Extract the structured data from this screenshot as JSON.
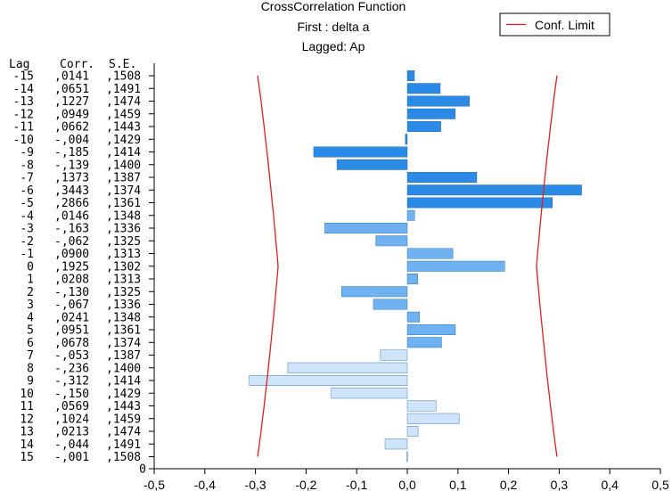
{
  "chart_data": {
    "type": "bar",
    "orientation": "horizontal",
    "title": "CrossCorrelation Function",
    "subtitle_1": "First : delta a",
    "subtitle_2": "Lagged: Ap",
    "legend": {
      "label": "Conf. Limit",
      "color": "#e02020",
      "placement": "top-right"
    },
    "table_headers": {
      "lag": "Lag",
      "corr": "Corr.",
      "se": "S.E."
    },
    "xlim": [
      -0.5,
      0.5
    ],
    "x_ticks": [
      "-0,5",
      "-0,4",
      "-0,3",
      "-0,2",
      "-0,1",
      "0,0",
      "0,1",
      "0,2",
      "0,3",
      "0,4",
      "0,5"
    ],
    "x_tick_values": [
      -0.5,
      -0.4,
      -0.3,
      -0.2,
      -0.1,
      0.0,
      0.1,
      0.2,
      0.3,
      0.4,
      0.5
    ],
    "bottom_label": "0",
    "bar_colors": {
      "dark": "#2b8ae6",
      "mid": "#6fb2f2",
      "light": "#cde4fa",
      "edge": "#1c5fa8"
    },
    "rows": [
      {
        "lag": "-15",
        "corr": ",0141",
        "se": ",1508",
        "value": 0.0141,
        "conf": 0.2956
      },
      {
        "lag": "-14",
        "corr": ",0651",
        "se": ",1491",
        "value": 0.0651,
        "conf": 0.2922
      },
      {
        "lag": "-13",
        "corr": ",1227",
        "se": ",1474",
        "value": 0.1227,
        "conf": 0.2889
      },
      {
        "lag": "-12",
        "corr": ",0949",
        "se": ",1459",
        "value": 0.0949,
        "conf": 0.286
      },
      {
        "lag": "-11",
        "corr": ",0662",
        "se": ",1443",
        "value": 0.0662,
        "conf": 0.2828
      },
      {
        "lag": "-10",
        "corr": "-,004",
        "se": ",1429",
        "value": -0.004,
        "conf": 0.2801
      },
      {
        "lag": "-9",
        "corr": "-,185",
        "se": ",1414",
        "value": -0.185,
        "conf": 0.2771
      },
      {
        "lag": "-8",
        "corr": "-,139",
        "se": ",1400",
        "value": -0.139,
        "conf": 0.2744
      },
      {
        "lag": "-7",
        "corr": ",1373",
        "se": ",1387",
        "value": 0.1373,
        "conf": 0.2719
      },
      {
        "lag": "-6",
        "corr": ",3443",
        "se": ",1374",
        "value": 0.3443,
        "conf": 0.2693
      },
      {
        "lag": "-5",
        "corr": ",2866",
        "se": ",1361",
        "value": 0.2866,
        "conf": 0.2668
      },
      {
        "lag": "-4",
        "corr": ",0146",
        "se": ",1348",
        "value": 0.0146,
        "conf": 0.2642
      },
      {
        "lag": "-3",
        "corr": "-,163",
        "se": ",1336",
        "value": -0.163,
        "conf": 0.2619
      },
      {
        "lag": "-2",
        "corr": "-,062",
        "se": ",1325",
        "value": -0.062,
        "conf": 0.2597
      },
      {
        "lag": "-1",
        "corr": ",0900",
        "se": ",1313",
        "value": 0.09,
        "conf": 0.2573
      },
      {
        "lag": "0",
        "corr": ",1925",
        "se": ",1302",
        "value": 0.1925,
        "conf": 0.2552
      },
      {
        "lag": "1",
        "corr": ",0208",
        "se": ",1313",
        "value": 0.0208,
        "conf": 0.2573
      },
      {
        "lag": "2",
        "corr": "-,130",
        "se": ",1325",
        "value": -0.13,
        "conf": 0.2597
      },
      {
        "lag": "3",
        "corr": "-,067",
        "se": ",1336",
        "value": -0.067,
        "conf": 0.2619
      },
      {
        "lag": "4",
        "corr": ",0241",
        "se": ",1348",
        "value": 0.0241,
        "conf": 0.2642
      },
      {
        "lag": "5",
        "corr": ",0951",
        "se": ",1361",
        "value": 0.0951,
        "conf": 0.2668
      },
      {
        "lag": "6",
        "corr": ",0678",
        "se": ",1374",
        "value": 0.0678,
        "conf": 0.2693
      },
      {
        "lag": "7",
        "corr": "-,053",
        "se": ",1387",
        "value": -0.053,
        "conf": 0.2719
      },
      {
        "lag": "8",
        "corr": "-,236",
        "se": ",1400",
        "value": -0.236,
        "conf": 0.2744
      },
      {
        "lag": "9",
        "corr": "-,312",
        "se": ",1414",
        "value": -0.312,
        "conf": 0.2771
      },
      {
        "lag": "10",
        "corr": "-,150",
        "se": ",1429",
        "value": -0.15,
        "conf": 0.2801
      },
      {
        "lag": "11",
        "corr": ",0569",
        "se": ",1443",
        "value": 0.0569,
        "conf": 0.2828
      },
      {
        "lag": "12",
        "corr": ",1024",
        "se": ",1459",
        "value": 0.1024,
        "conf": 0.286
      },
      {
        "lag": "13",
        "corr": ",0213",
        "se": ",1474",
        "value": 0.0213,
        "conf": 0.2889
      },
      {
        "lag": "14",
        "corr": "-,044",
        "se": ",1491",
        "value": -0.044,
        "conf": 0.2922
      },
      {
        "lag": "15",
        "corr": "-,001",
        "se": ",1508",
        "value": -0.001,
        "conf": 0.2956
      }
    ]
  }
}
